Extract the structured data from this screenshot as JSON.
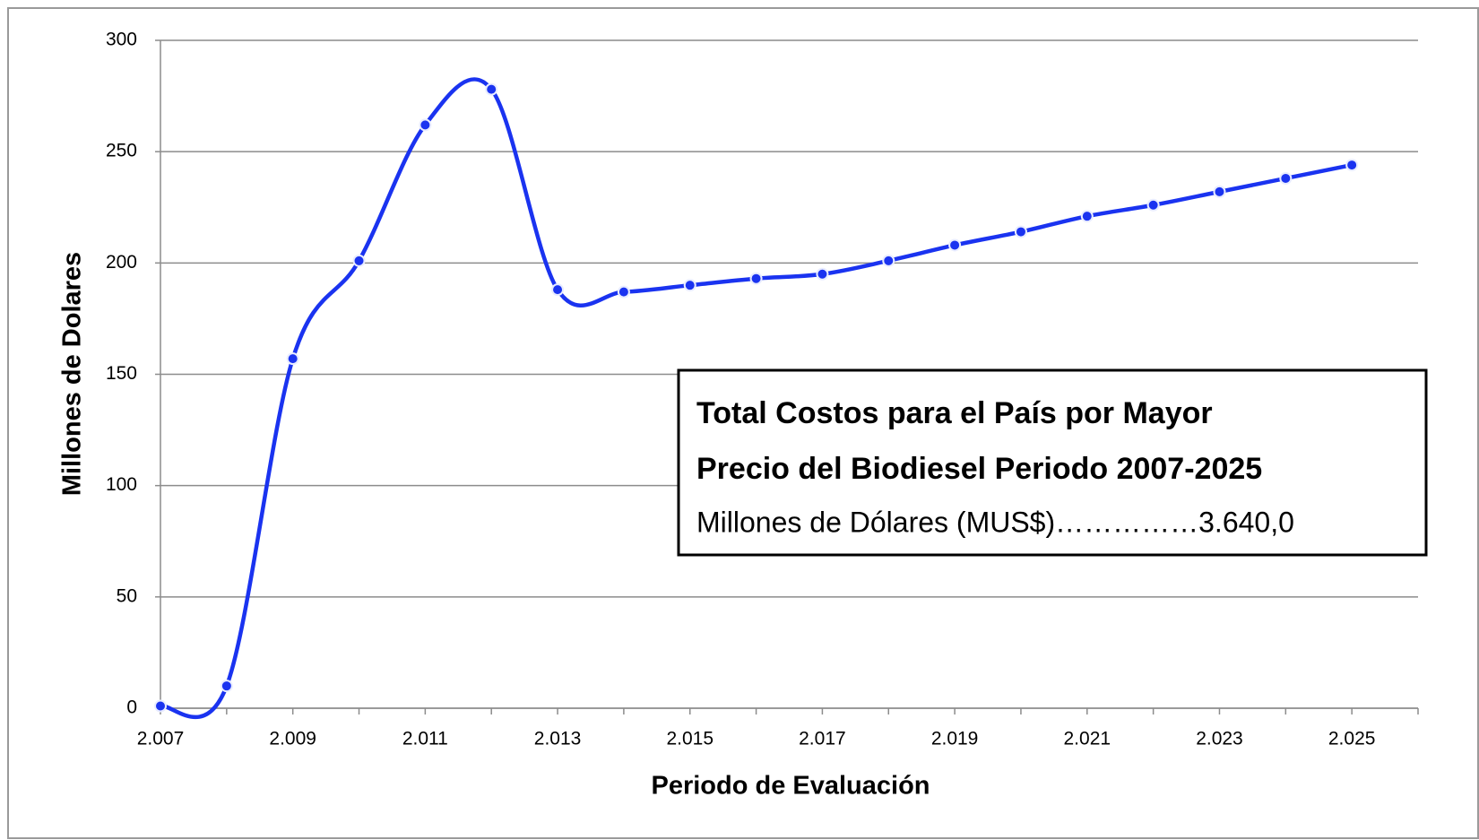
{
  "chart_data": {
    "type": "line",
    "x_label": "Periodo de Evaluación",
    "y_label": "Millones de Dolares",
    "categories": [
      "2.007",
      null,
      "2.009",
      null,
      "2.011",
      null,
      "2.013",
      null,
      "2.015",
      null,
      "2.017",
      null,
      "2.019",
      null,
      "2.021",
      null,
      "2.023",
      null,
      "2.025"
    ],
    "series": [
      {
        "color": "#1a33f0",
        "values": [
          1,
          10,
          157,
          201,
          262,
          278,
          188,
          187,
          190,
          193,
          195,
          201,
          208,
          214,
          221,
          226,
          232,
          238,
          244
        ]
      }
    ],
    "ylim": [
      0,
      300
    ],
    "yticks": [
      0,
      50,
      100,
      150,
      200,
      250,
      300
    ],
    "grid": true,
    "smooth": true,
    "annotation": {
      "title_lines": [
        "Total Costos para el País por Mayor",
        "Precio del Biodiesel Periodo 2007-2025"
      ],
      "text": "Millones de Dólares (MUS$)……………3.640,0"
    }
  }
}
